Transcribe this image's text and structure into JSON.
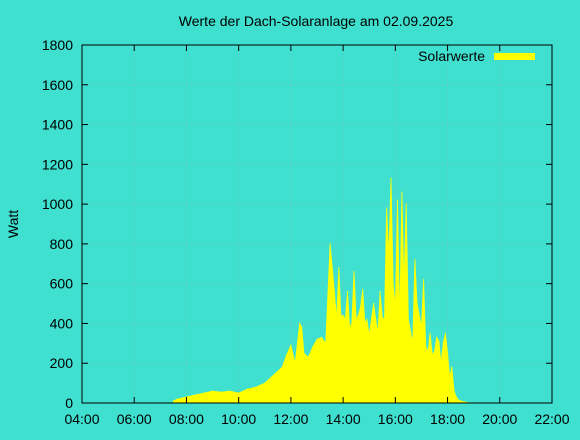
{
  "chart_data": {
    "type": "area",
    "title": "Werte der Dach-Solaranlage am 02.09.2025",
    "xlabel": "",
    "ylabel": "Watt",
    "ylim": [
      0,
      1800
    ],
    "xlim": [
      "04:00",
      "22:00"
    ],
    "y_ticks": [
      "0",
      "200",
      "400",
      "600",
      "800",
      "1000",
      "1200",
      "1400",
      "1600",
      "1800"
    ],
    "x_ticks": [
      "04:00",
      "06:00",
      "08:00",
      "10:00",
      "12:00",
      "14:00",
      "16:00",
      "18:00",
      "20:00",
      "22:00"
    ],
    "grid": true,
    "legend_position": "top-right",
    "series": [
      {
        "name": "Solarwerte",
        "color": "#ffff00",
        "x": [
          "07:30",
          "07:40",
          "08:00",
          "08:20",
          "08:40",
          "09:00",
          "09:20",
          "09:40",
          "10:00",
          "10:20",
          "10:40",
          "11:00",
          "11:20",
          "11:40",
          "11:50",
          "12:00",
          "12:10",
          "12:20",
          "12:25",
          "12:30",
          "12:40",
          "12:50",
          "13:00",
          "13:10",
          "13:20",
          "13:30",
          "13:40",
          "13:45",
          "13:50",
          "13:55",
          "14:00",
          "14:05",
          "14:10",
          "14:15",
          "14:20",
          "14:25",
          "14:30",
          "14:35",
          "14:40",
          "14:45",
          "14:50",
          "14:55",
          "15:00",
          "15:05",
          "15:10",
          "15:15",
          "15:20",
          "15:25",
          "15:30",
          "15:35",
          "15:40",
          "15:45",
          "15:50",
          "15:55",
          "16:00",
          "16:05",
          "16:10",
          "16:15",
          "16:20",
          "16:25",
          "16:30",
          "16:35",
          "16:40",
          "16:45",
          "16:50",
          "16:55",
          "17:00",
          "17:05",
          "17:10",
          "17:15",
          "17:20",
          "17:25",
          "17:30",
          "17:35",
          "17:40",
          "17:45",
          "17:50",
          "17:55",
          "18:00",
          "18:05",
          "18:10",
          "18:15",
          "18:20",
          "18:25",
          "18:30",
          "18:40",
          "18:50",
          "18:55"
        ],
        "values": [
          10,
          20,
          30,
          40,
          50,
          60,
          55,
          60,
          50,
          70,
          80,
          100,
          140,
          180,
          240,
          290,
          200,
          400,
          380,
          250,
          230,
          280,
          320,
          330,
          300,
          800,
          560,
          420,
          680,
          440,
          440,
          420,
          560,
          380,
          400,
          660,
          420,
          440,
          480,
          570,
          400,
          420,
          340,
          420,
          500,
          420,
          350,
          560,
          430,
          420,
          980,
          740,
          1130,
          600,
          480,
          1020,
          420,
          1060,
          600,
          1000,
          420,
          360,
          300,
          720,
          500,
          440,
          380,
          620,
          280,
          260,
          350,
          240,
          260,
          330,
          310,
          200,
          300,
          350,
          250,
          130,
          180,
          60,
          30,
          15,
          10,
          5,
          0,
          0
        ]
      }
    ]
  }
}
